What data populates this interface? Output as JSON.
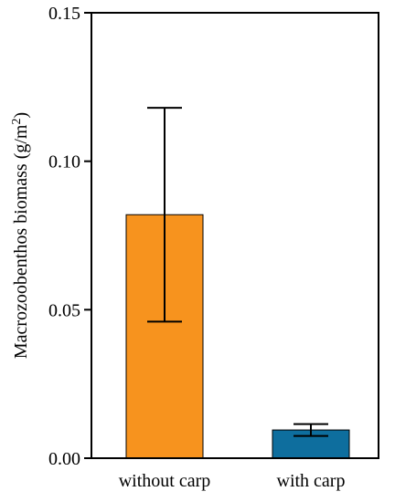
{
  "chart_data": {
    "type": "bar",
    "title": "",
    "xlabel": "",
    "ylabel": "Macrozoobenthos biomass (g/m",
    "ylabel_superscript": "2",
    "ylabel_suffix": ")",
    "categories": [
      "without carp",
      "with carp"
    ],
    "series": [
      {
        "values": [
          0.082,
          0.0095
        ],
        "error_bars": [
          {
            "lower": 0.046,
            "upper": 0.118
          },
          {
            "lower": 0.0075,
            "upper": 0.0115
          }
        ],
        "colors": [
          "#F7931E",
          "#0E6E9E"
        ]
      }
    ],
    "ylim": [
      0,
      0.15
    ],
    "y_ticks": [
      0.0,
      0.05,
      0.1,
      0.15
    ],
    "y_tick_labels": [
      "0.00",
      "0.05",
      "0.10",
      "0.15"
    ],
    "grid": false,
    "legend": "none"
  }
}
